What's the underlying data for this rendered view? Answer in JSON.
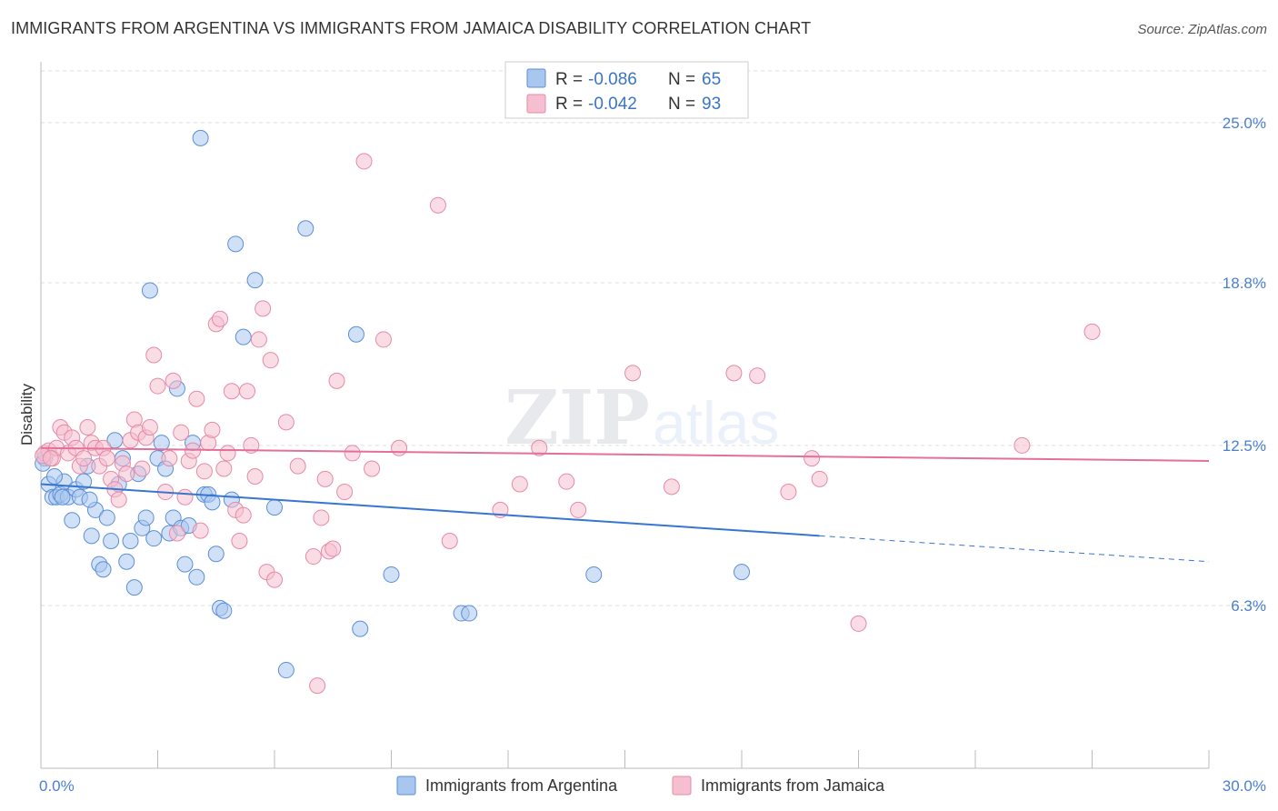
{
  "header": {
    "title": "IMMIGRANTS FROM ARGENTINA VS IMMIGRANTS FROM JAMAICA DISABILITY CORRELATION CHART",
    "source": "Source: ZipAtlas.com"
  },
  "watermark": {
    "zip": "ZIP",
    "atlas": "atlas"
  },
  "legend": {
    "rows": [
      {
        "r_label": "R =",
        "r_value": "-0.086",
        "n_label": "N =",
        "n_value": "65"
      },
      {
        "r_label": "R =",
        "r_value": "-0.042",
        "n_label": "N =",
        "n_value": "93"
      }
    ]
  },
  "colors": {
    "argentina_fill": "#a9c6ef",
    "argentina_stroke": "#5b8fd6",
    "argentina_line": "#3776d0",
    "jamaica_fill": "#f6bfd0",
    "jamaica_stroke": "#e58aa8",
    "jamaica_line": "#e2709a",
    "axis_label": "#4a7fd1",
    "grid": "#dddddd"
  },
  "chart_data": {
    "type": "scatter",
    "ylabel": "Disability",
    "xlim": [
      0,
      30
    ],
    "ylim": [
      0,
      27
    ],
    "x_tick_labels": [
      "0.0%",
      "30.0%"
    ],
    "y_ticks": [
      6.3,
      12.5,
      18.8,
      25.0
    ],
    "y_tick_labels": [
      "6.3%",
      "12.5%",
      "18.8%",
      "25.0%"
    ],
    "grid": "horizontal dashed",
    "legend_position": "top-center",
    "series": [
      {
        "name": "Immigrants from Argentina",
        "trend": {
          "x": [
            0,
            20
          ],
          "y": [
            11.0,
            9.0
          ],
          "dashed_to_x": 30,
          "dashed_end_y": 8.0
        },
        "points": [
          [
            0.1,
            12.0
          ],
          [
            0.2,
            11.0
          ],
          [
            0.3,
            10.5
          ],
          [
            0.4,
            10.5
          ],
          [
            0.5,
            10.6
          ],
          [
            0.6,
            11.1
          ],
          [
            0.7,
            10.5
          ],
          [
            0.8,
            9.6
          ],
          [
            0.9,
            10.8
          ],
          [
            1.0,
            10.5
          ],
          [
            1.1,
            11.1
          ],
          [
            1.2,
            11.7
          ],
          [
            1.3,
            9.0
          ],
          [
            1.4,
            10.0
          ],
          [
            1.5,
            7.9
          ],
          [
            1.6,
            7.7
          ],
          [
            1.7,
            9.7
          ],
          [
            1.8,
            8.8
          ],
          [
            1.9,
            12.7
          ],
          [
            2.0,
            11.0
          ],
          [
            2.1,
            12.0
          ],
          [
            2.2,
            8.0
          ],
          [
            2.3,
            8.8
          ],
          [
            2.4,
            7.0
          ],
          [
            2.5,
            11.4
          ],
          [
            2.6,
            9.3
          ],
          [
            2.7,
            9.7
          ],
          [
            2.8,
            18.5
          ],
          [
            2.9,
            8.9
          ],
          [
            3.0,
            12.0
          ],
          [
            3.1,
            12.6
          ],
          [
            3.2,
            11.6
          ],
          [
            3.3,
            9.1
          ],
          [
            3.4,
            9.7
          ],
          [
            3.5,
            14.7
          ],
          [
            3.6,
            9.3
          ],
          [
            3.7,
            7.9
          ],
          [
            3.8,
            9.4
          ],
          [
            3.9,
            12.6
          ],
          [
            4.0,
            7.4
          ],
          [
            4.1,
            24.4
          ],
          [
            4.2,
            10.6
          ],
          [
            4.3,
            10.6
          ],
          [
            4.4,
            10.3
          ],
          [
            4.5,
            8.3
          ],
          [
            4.6,
            6.2
          ],
          [
            4.7,
            6.1
          ],
          [
            4.9,
            10.4
          ],
          [
            5.0,
            20.3
          ],
          [
            5.2,
            16.7
          ],
          [
            5.5,
            18.9
          ],
          [
            6.0,
            10.1
          ],
          [
            6.3,
            3.8
          ],
          [
            6.8,
            20.9
          ],
          [
            8.1,
            16.8
          ],
          [
            8.2,
            5.4
          ],
          [
            9.0,
            7.5
          ],
          [
            10.8,
            6.0
          ],
          [
            11.0,
            6.0
          ],
          [
            14.2,
            7.5
          ],
          [
            18.0,
            7.6
          ],
          [
            0.05,
            11.8
          ],
          [
            0.35,
            11.3
          ],
          [
            0.55,
            10.5
          ],
          [
            1.25,
            10.4
          ]
        ]
      },
      {
        "name": "Immigrants from Jamaica",
        "trend": {
          "x": [
            0,
            30
          ],
          "y": [
            12.4,
            11.9
          ]
        },
        "points": [
          [
            0.1,
            12.2
          ],
          [
            0.2,
            12.3
          ],
          [
            0.3,
            12.0
          ],
          [
            0.4,
            12.4
          ],
          [
            0.5,
            13.2
          ],
          [
            0.6,
            13.0
          ],
          [
            0.7,
            12.2
          ],
          [
            0.8,
            12.8
          ],
          [
            0.9,
            12.4
          ],
          [
            1.0,
            11.7
          ],
          [
            1.1,
            12.0
          ],
          [
            1.2,
            13.2
          ],
          [
            1.3,
            12.6
          ],
          [
            1.4,
            12.4
          ],
          [
            1.5,
            11.7
          ],
          [
            1.6,
            12.4
          ],
          [
            1.7,
            12.0
          ],
          [
            1.8,
            11.2
          ],
          [
            1.9,
            10.8
          ],
          [
            2.0,
            10.4
          ],
          [
            2.1,
            11.8
          ],
          [
            2.2,
            11.4
          ],
          [
            2.3,
            12.7
          ],
          [
            2.4,
            13.5
          ],
          [
            2.5,
            13.0
          ],
          [
            2.6,
            11.6
          ],
          [
            2.7,
            12.8
          ],
          [
            2.8,
            13.2
          ],
          [
            2.9,
            16.0
          ],
          [
            3.0,
            14.8
          ],
          [
            3.2,
            10.7
          ],
          [
            3.3,
            12.0
          ],
          [
            3.4,
            15.0
          ],
          [
            3.5,
            9.1
          ],
          [
            3.6,
            13.0
          ],
          [
            3.7,
            10.5
          ],
          [
            3.8,
            11.9
          ],
          [
            3.9,
            12.3
          ],
          [
            4.0,
            14.3
          ],
          [
            4.1,
            9.2
          ],
          [
            4.2,
            11.5
          ],
          [
            4.3,
            12.6
          ],
          [
            4.4,
            13.1
          ],
          [
            4.5,
            17.2
          ],
          [
            4.6,
            17.4
          ],
          [
            4.7,
            11.6
          ],
          [
            4.8,
            12.2
          ],
          [
            4.9,
            14.6
          ],
          [
            5.0,
            10.0
          ],
          [
            5.1,
            8.8
          ],
          [
            5.2,
            9.8
          ],
          [
            5.3,
            14.6
          ],
          [
            5.4,
            12.5
          ],
          [
            5.5,
            11.3
          ],
          [
            5.6,
            16.6
          ],
          [
            5.7,
            17.8
          ],
          [
            5.8,
            7.6
          ],
          [
            5.9,
            15.8
          ],
          [
            6.0,
            7.3
          ],
          [
            6.3,
            13.4
          ],
          [
            6.6,
            11.7
          ],
          [
            7.0,
            8.2
          ],
          [
            7.1,
            3.2
          ],
          [
            7.2,
            9.7
          ],
          [
            7.3,
            11.2
          ],
          [
            7.4,
            8.4
          ],
          [
            7.5,
            8.5
          ],
          [
            7.6,
            15.0
          ],
          [
            7.8,
            10.7
          ],
          [
            8.0,
            12.2
          ],
          [
            8.3,
            23.5
          ],
          [
            8.5,
            11.6
          ],
          [
            8.8,
            16.6
          ],
          [
            9.2,
            12.4
          ],
          [
            10.2,
            21.8
          ],
          [
            10.5,
            8.8
          ],
          [
            11.8,
            10.0
          ],
          [
            12.3,
            11.0
          ],
          [
            12.8,
            12.4
          ],
          [
            13.5,
            11.1
          ],
          [
            13.8,
            10.0
          ],
          [
            15.2,
            15.3
          ],
          [
            16.2,
            10.9
          ],
          [
            17.8,
            15.3
          ],
          [
            18.4,
            15.2
          ],
          [
            19.2,
            10.7
          ],
          [
            19.8,
            12.0
          ],
          [
            20.0,
            11.2
          ],
          [
            21.0,
            5.6
          ],
          [
            25.2,
            12.5
          ],
          [
            27.0,
            16.9
          ],
          [
            0.05,
            12.1
          ],
          [
            0.25,
            12.0
          ]
        ]
      }
    ]
  },
  "bottom_legend": {
    "argentina": "Immigrants from Argentina",
    "jamaica": "Immigrants from Jamaica"
  }
}
